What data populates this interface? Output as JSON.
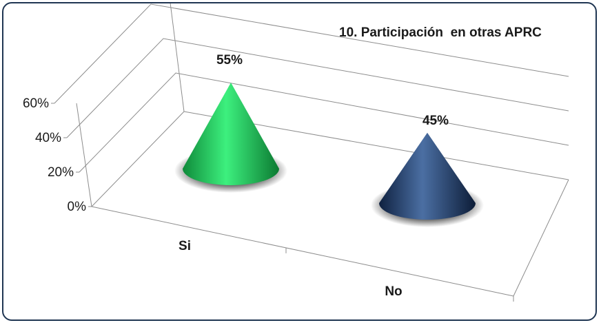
{
  "chart_data": {
    "type": "bar",
    "style": "3d-cone",
    "title": "10. Participación  en otras APRC",
    "categories": [
      "Si",
      "No"
    ],
    "values": [
      55,
      45
    ],
    "data_labels": [
      "55%",
      "45%"
    ],
    "ylim": [
      0,
      60
    ],
    "yticks": [
      0,
      20,
      40,
      60
    ],
    "ytick_labels": [
      "0%",
      "20%",
      "40%",
      "60%"
    ],
    "grid": true,
    "legend": "none",
    "colors": [
      "#22c45a",
      "#1f3a66"
    ],
    "frame_color": "#1f3552"
  }
}
